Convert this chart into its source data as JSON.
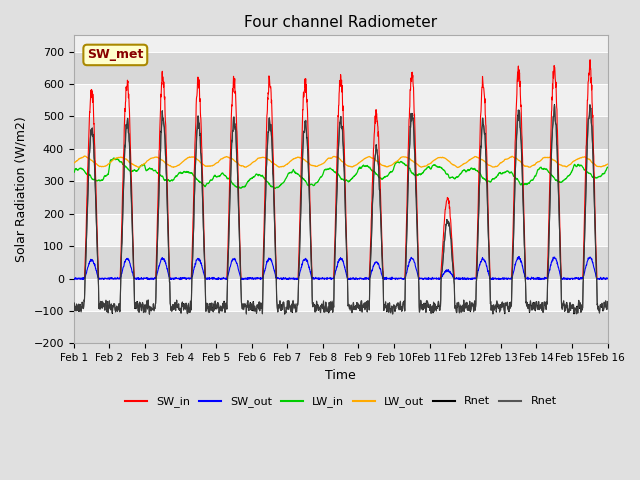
{
  "title": "Four channel Radiometer",
  "xlabel": "Time",
  "ylabel": "Solar Radiation (W/m2)",
  "xlim": [
    0,
    15
  ],
  "ylim": [
    -200,
    750
  ],
  "yticks": [
    -200,
    -100,
    0,
    100,
    200,
    300,
    400,
    500,
    600,
    700
  ],
  "xtick_labels": [
    "Feb 1",
    "Feb 2",
    "Feb 3",
    "Feb 4",
    "Feb 5",
    "Feb 6",
    "Feb 7",
    "Feb 8",
    "Feb 9",
    "Feb 10",
    "Feb 11",
    "Feb 12",
    "Feb 13",
    "Feb 14",
    "Feb 15",
    "Feb 16"
  ],
  "annotation_text": "SW_met",
  "annotation_bg": "#ffffcc",
  "annotation_border": "#aa8800",
  "annotation_text_color": "#880000",
  "colors": {
    "SW_in": "#ff0000",
    "SW_out": "#0000ff",
    "LW_in": "#00cc00",
    "LW_out": "#ffaa00",
    "Rnet_black": "#000000",
    "Rnet_dark": "#555555"
  },
  "legend_entries": [
    "SW_in",
    "SW_out",
    "LW_in",
    "LW_out",
    "Rnet",
    "Rnet"
  ],
  "legend_colors": [
    "#ff0000",
    "#0000ff",
    "#00cc00",
    "#ffaa00",
    "#000000",
    "#555555"
  ],
  "bg_color": "#e0e0e0",
  "plot_bg": "#f0f0f0",
  "stripe_color": "#d8d8d8"
}
